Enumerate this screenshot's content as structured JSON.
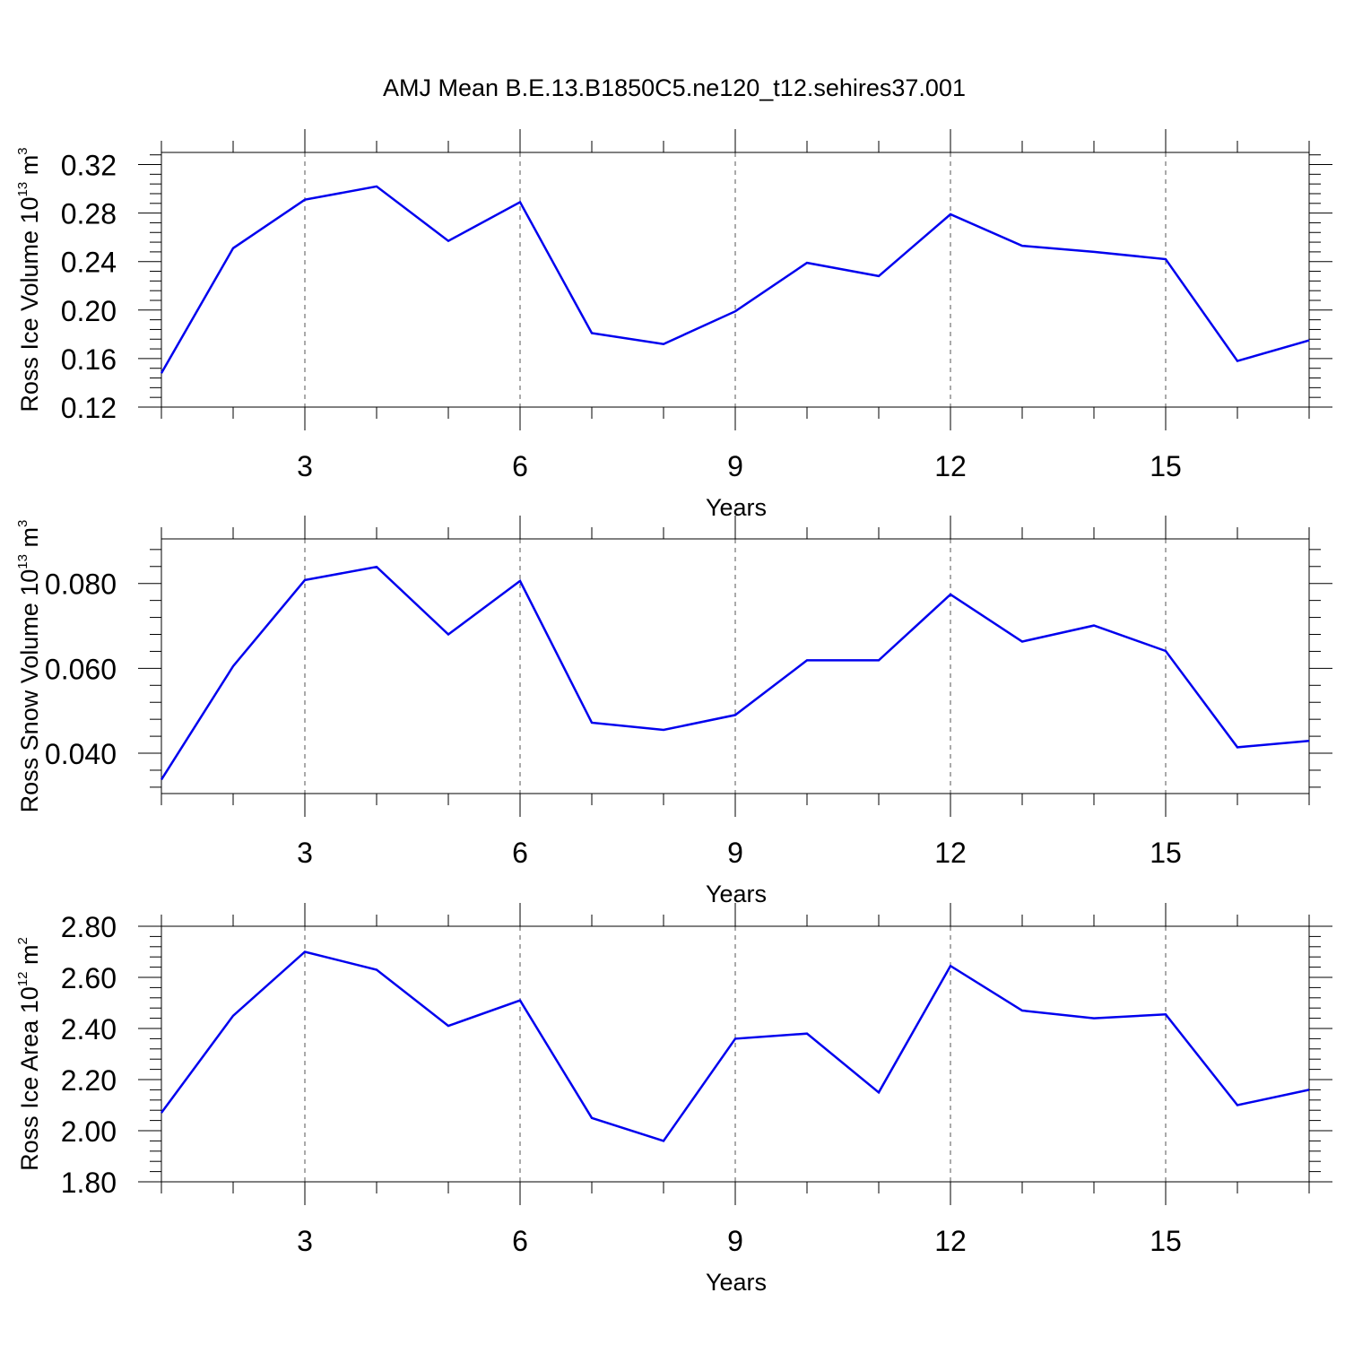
{
  "chart_data": [
    {
      "type": "line",
      "title": "AMJ Mean B.E.13.B1850C5.ne120_t12.sehires37.001",
      "xlabel": "Years",
      "ylabel": {
        "text": "Ross Ice Volume 10",
        "exponent": "13",
        "unit": " m",
        "unit_exponent": "3"
      },
      "xlim": [
        1,
        17
      ],
      "ylim": [
        0.12,
        0.33
      ],
      "xticks": [
        3,
        6,
        9,
        12,
        15
      ],
      "yticks": [
        0.12,
        0.16,
        0.2,
        0.24,
        0.28,
        0.32
      ],
      "ytick_labels": [
        "0.12",
        "0.16",
        "0.20",
        "0.24",
        "0.28",
        "0.32"
      ],
      "grid": "vertical dashed at major x ticks",
      "color": "#0000ee",
      "x": [
        1,
        2,
        3,
        4,
        5,
        6,
        7,
        8,
        9,
        10,
        11,
        12,
        13,
        14,
        15,
        16,
        17
      ],
      "values": [
        0.148,
        0.251,
        0.291,
        0.302,
        0.257,
        0.289,
        0.181,
        0.172,
        0.199,
        0.239,
        0.228,
        0.279,
        0.253,
        0.248,
        0.242,
        0.158,
        0.175
      ]
    },
    {
      "type": "line",
      "title": "",
      "xlabel": "Years",
      "ylabel": {
        "text": "Ross Snow Volume 10",
        "exponent": "13",
        "unit": " m",
        "unit_exponent": "3"
      },
      "xlim": [
        1,
        17
      ],
      "ylim": [
        0.0305,
        0.0905
      ],
      "xticks": [
        3,
        6,
        9,
        12,
        15
      ],
      "yticks": [
        0.04,
        0.06,
        0.08
      ],
      "ytick_labels": [
        "0.040",
        "0.060",
        "0.080"
      ],
      "grid": "vertical dashed at major x ticks",
      "color": "#0000ee",
      "x": [
        1,
        2,
        3,
        4,
        5,
        6,
        7,
        8,
        9,
        10,
        11,
        12,
        13,
        14,
        15,
        16,
        17
      ],
      "values": [
        0.0338,
        0.0605,
        0.0808,
        0.0839,
        0.068,
        0.0806,
        0.0472,
        0.0455,
        0.049,
        0.0619,
        0.0619,
        0.0774,
        0.0663,
        0.0701,
        0.0641,
        0.0414,
        0.0429
      ]
    },
    {
      "type": "line",
      "title": "",
      "xlabel": "Years",
      "ylabel": {
        "text": "Ross Ice Area 10",
        "exponent": "12",
        "unit": " m",
        "unit_exponent": "2"
      },
      "xlim": [
        1,
        17
      ],
      "ylim": [
        1.8,
        2.8
      ],
      "xticks": [
        3,
        6,
        9,
        12,
        15
      ],
      "yticks": [
        1.8,
        2.0,
        2.2,
        2.4,
        2.6,
        2.8
      ],
      "ytick_labels": [
        "1.80",
        "2.00",
        "2.20",
        "2.40",
        "2.60",
        "2.80"
      ],
      "grid": "vertical dashed at major x ticks",
      "color": "#0000ee",
      "x": [
        1,
        2,
        3,
        4,
        5,
        6,
        7,
        8,
        9,
        10,
        11,
        12,
        13,
        14,
        15,
        16,
        17
      ],
      "values": [
        2.07,
        2.45,
        2.7,
        2.63,
        2.41,
        2.51,
        2.05,
        1.96,
        2.36,
        2.38,
        2.15,
        2.645,
        2.47,
        2.44,
        2.455,
        2.1,
        2.16
      ]
    }
  ]
}
